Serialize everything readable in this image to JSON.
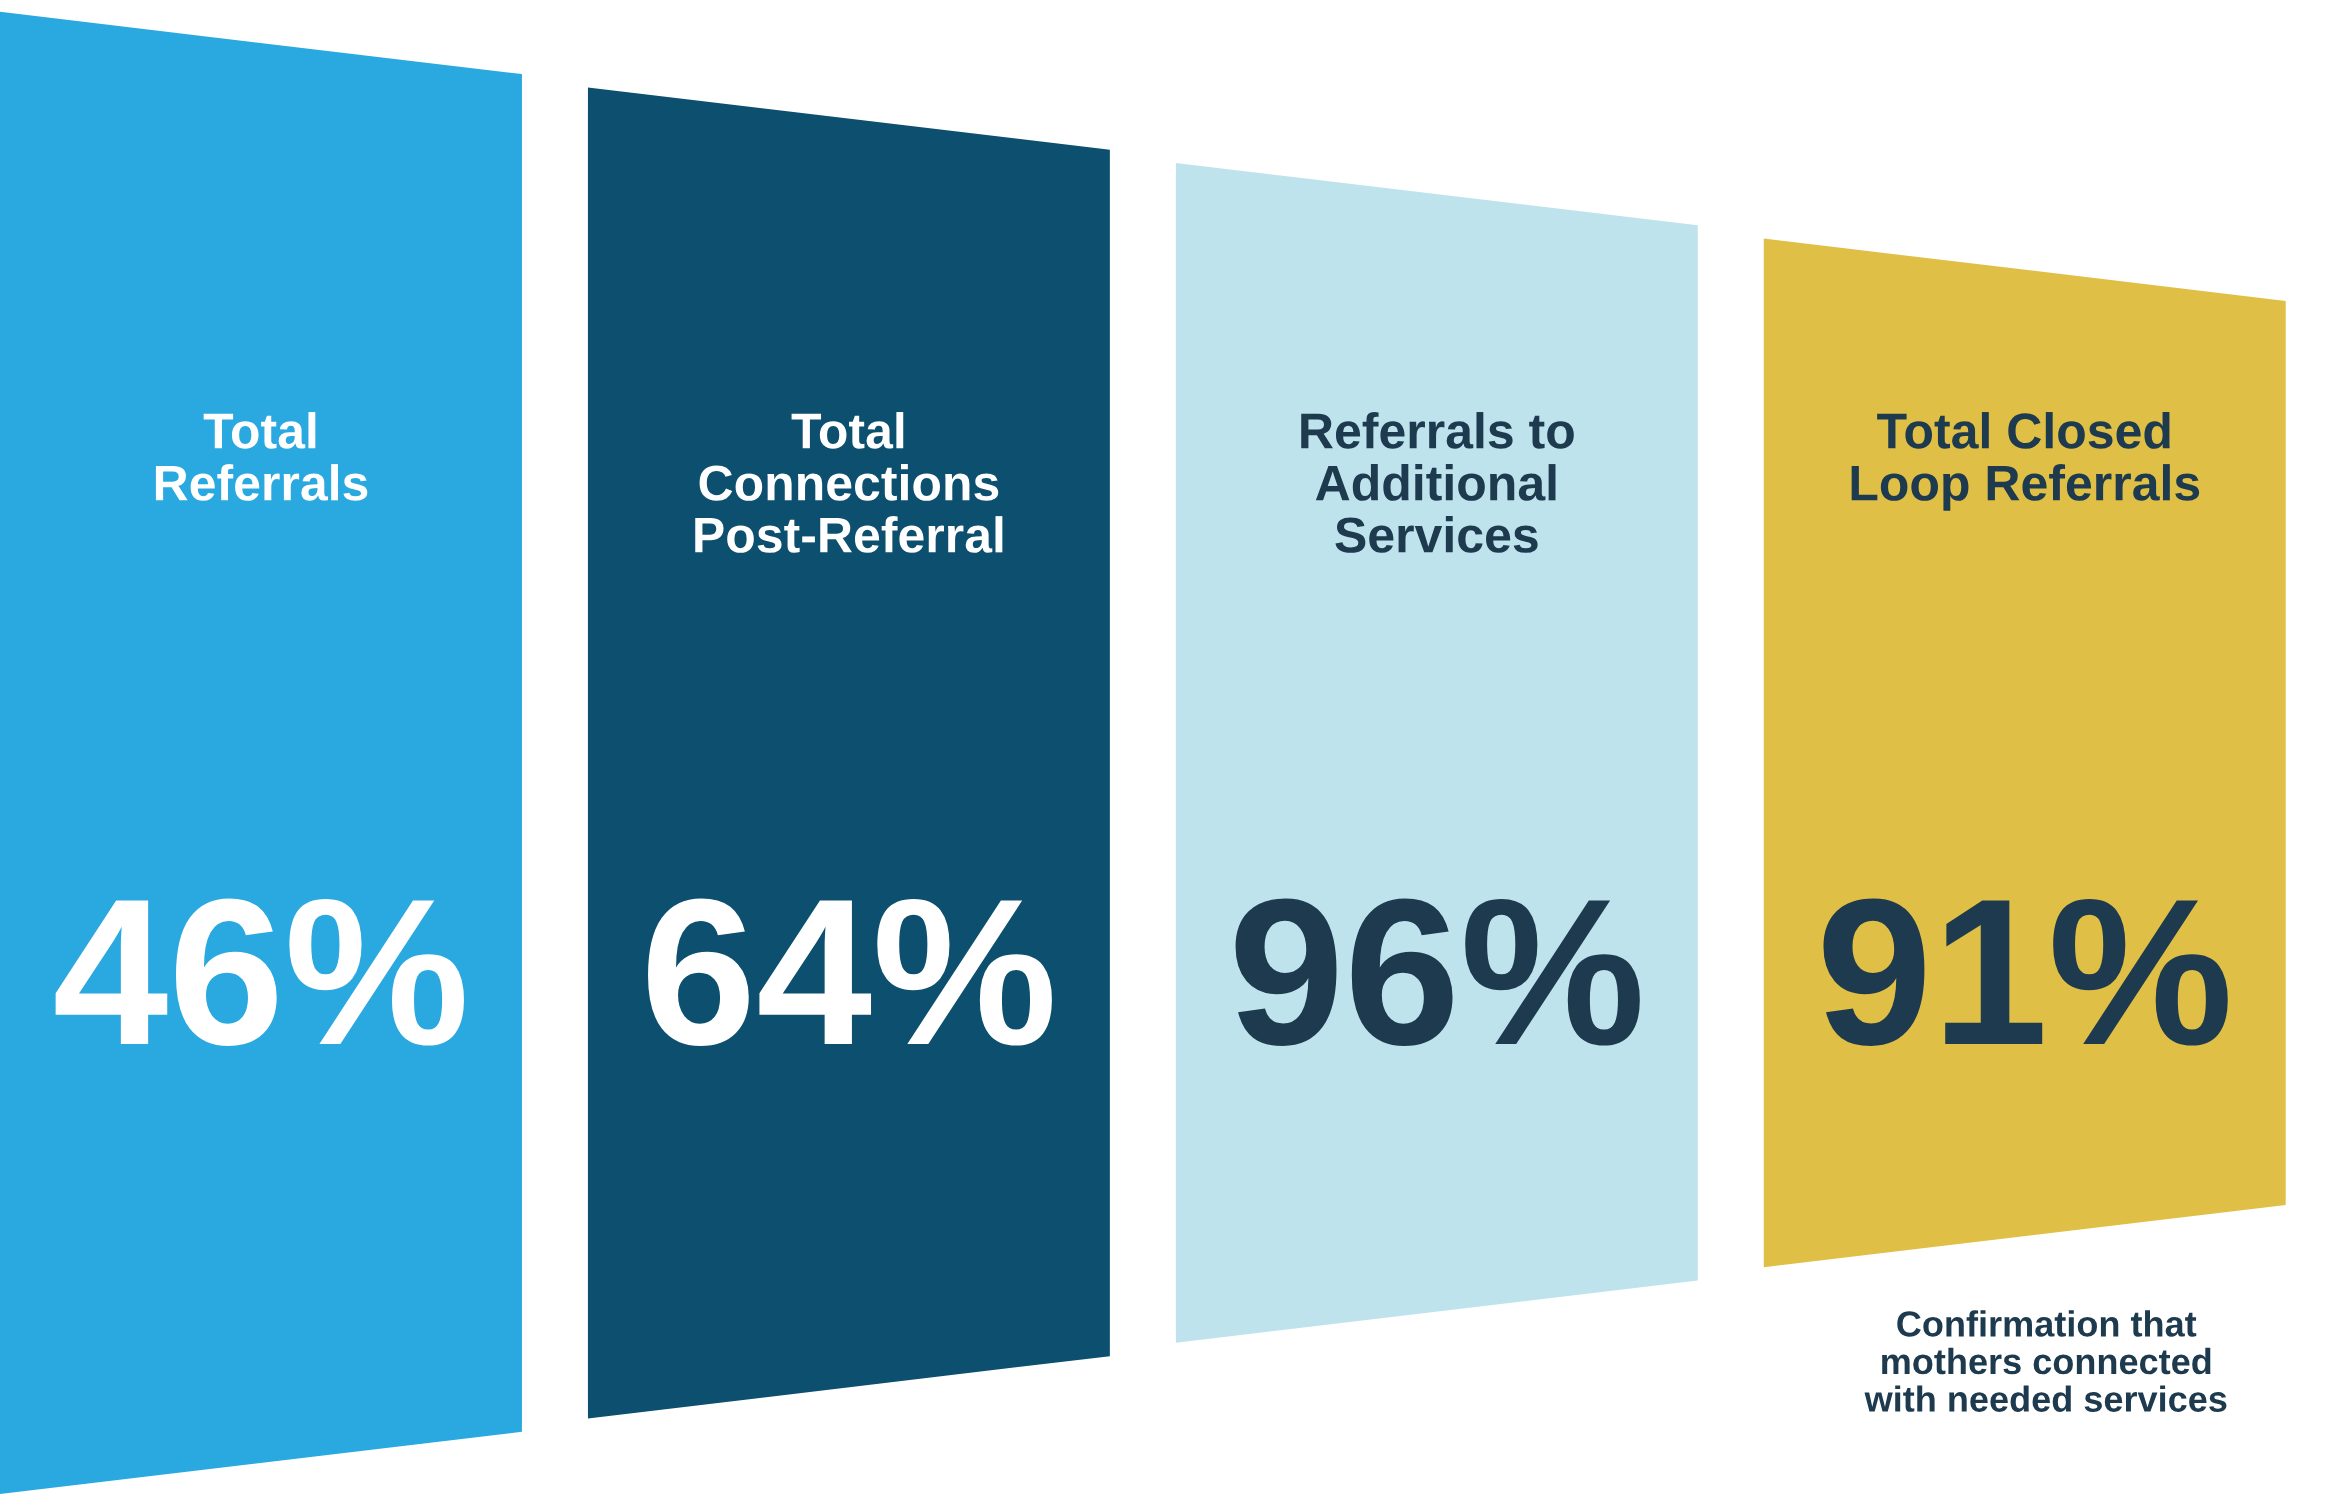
{
  "chart_data": {
    "type": "other",
    "categories": [
      "Total\nReferrals",
      "Total\nConnections\nPost-Referral",
      "Referrals to\nAdditional\nServices",
      "Total Closed\nLoop Referrals"
    ],
    "values": [
      46,
      64,
      96,
      91
    ],
    "value_labels": [
      "46%",
      "64%",
      "96%",
      "91%"
    ],
    "colors": [
      "#29a9e0",
      "#0c4f6e",
      "#bfe3ec",
      "#dfbf46"
    ],
    "annotations": [
      "Confirmation that\nmothers connected\nwith needed services"
    ]
  }
}
